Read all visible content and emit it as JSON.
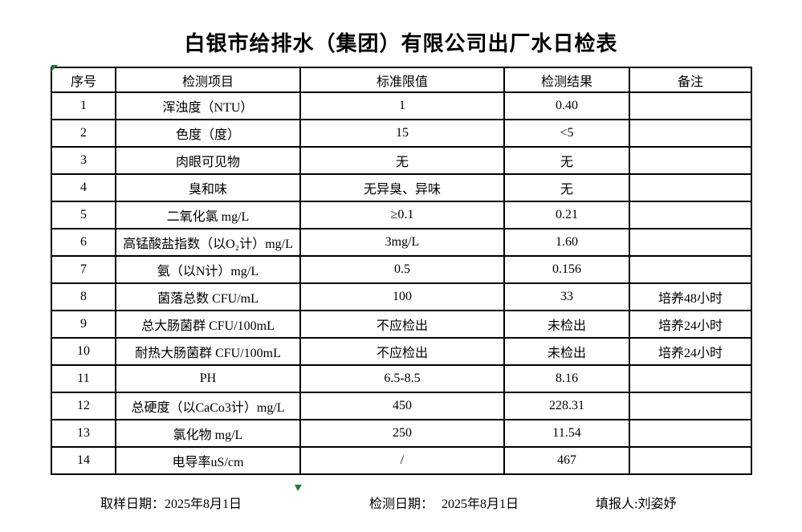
{
  "title": "白银市给排水（集团）有限公司出厂水日检表",
  "table": {
    "headers": [
      "序号",
      "检测项目",
      "标准限值",
      "检测结果",
      "备注"
    ],
    "rows": [
      [
        "1",
        "浑浊度（NTU）",
        "1",
        "0.40",
        ""
      ],
      [
        "2",
        "色度（度）",
        "15",
        "<5",
        ""
      ],
      [
        "3",
        "肉眼可见物",
        "无",
        "无",
        ""
      ],
      [
        "4",
        "臭和味",
        "无异臭、异味",
        "无",
        ""
      ],
      [
        "5",
        "二氧化氯 mg/L",
        "≥0.1",
        "0.21",
        ""
      ],
      [
        "6",
        "高锰酸盐指数（以O₂计）mg/L",
        "3mg/L",
        "1.60",
        ""
      ],
      [
        "7",
        "氨（以N计）mg/L",
        "0.5",
        "0.156",
        ""
      ],
      [
        "8",
        "菌落总数 CFU/mL",
        "100",
        "33",
        "培养48小时"
      ],
      [
        "9",
        "总大肠菌群 CFU/100mL",
        "不应检出",
        "未检出",
        "培养24小时"
      ],
      [
        "10",
        "耐热大肠菌群 CFU/100mL",
        "不应检出",
        "未检出",
        "培养24小时"
      ],
      [
        "11",
        "PH",
        "6.5-8.5",
        "8.16",
        ""
      ],
      [
        "12",
        "总硬度（以CaCo3计）mg/L",
        "450",
        "228.31",
        ""
      ],
      [
        "13",
        "氯化物 mg/L",
        "250",
        "11.54",
        ""
      ],
      [
        "14",
        "电导率uS/cm",
        "/",
        "467",
        ""
      ]
    ]
  },
  "footer": {
    "sampling": {
      "label": "取样日期：",
      "value": "2025年8月1日"
    },
    "test": {
      "label": "检测日期：",
      "value": "2025年8月1日"
    },
    "reporter": {
      "label": "填报人:",
      "value": "刘姿妤"
    }
  },
  "markers": {
    "indicator_color": "#1e7b34"
  }
}
